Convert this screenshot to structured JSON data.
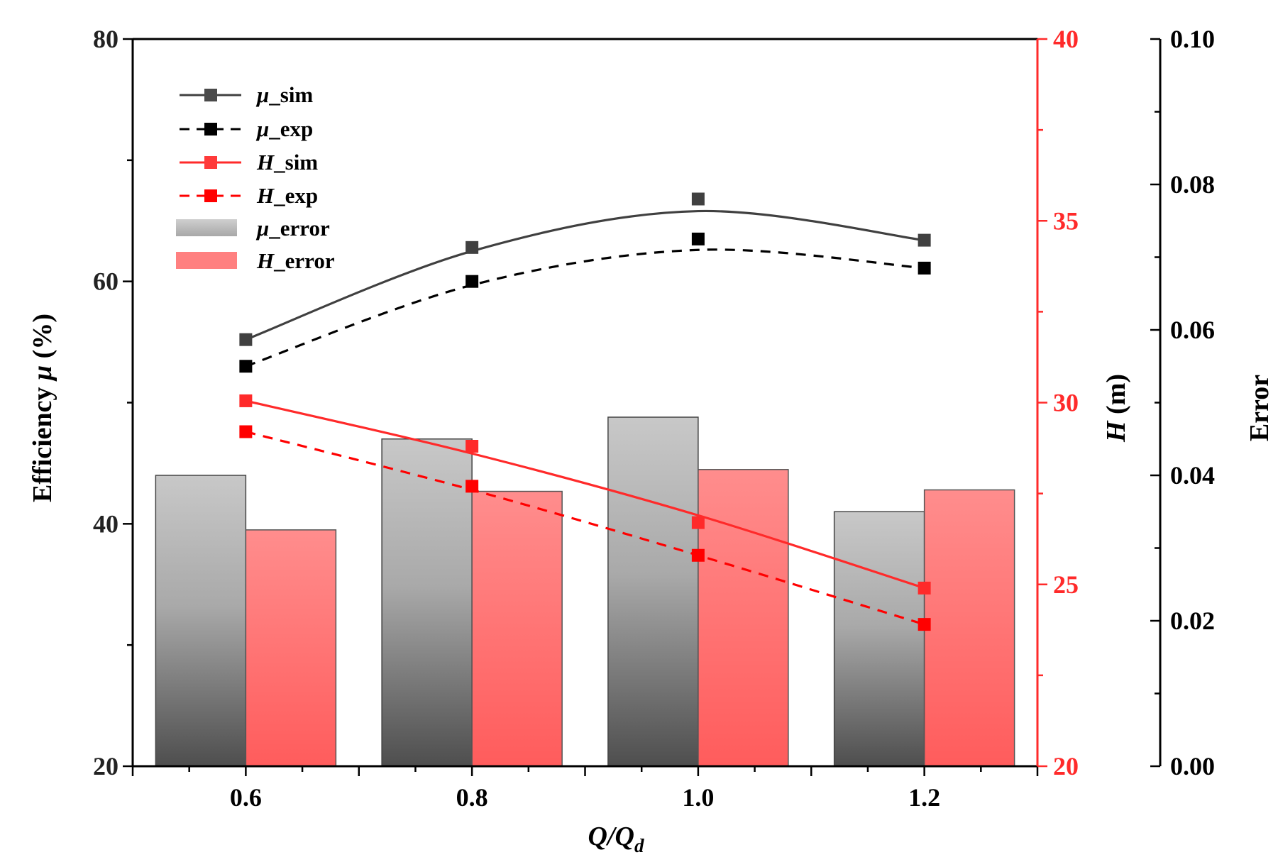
{
  "chart_data": {
    "type": "bar+line",
    "categories": [
      "0.6",
      "0.8",
      "1.0",
      "1.2"
    ],
    "x": [
      0.6,
      0.8,
      1.0,
      1.2
    ],
    "bars": [
      {
        "name": "μ_error",
        "axis": "error",
        "color": "#9a9a9a",
        "values": [
          0.04,
          0.045,
          0.048,
          0.035
        ]
      },
      {
        "name": "H_error",
        "axis": "error",
        "color": "#ff6b6b",
        "values": [
          0.0325,
          0.0378,
          0.0408,
          0.038
        ]
      }
    ],
    "lines": [
      {
        "name": "μ_sim",
        "axis": "efficiency",
        "color": "#404040",
        "dash": false,
        "values": [
          55.2,
          62.8,
          66.8,
          63.4
        ],
        "fit": [
          55.2,
          62.5,
          65.8,
          63.4
        ]
      },
      {
        "name": "μ_exp",
        "axis": "efficiency",
        "color": "#000000",
        "dash": true,
        "values": [
          53.0,
          60.0,
          63.5,
          61.1
        ],
        "fit": [
          53.0,
          59.7,
          62.6,
          61.1
        ]
      },
      {
        "name": "H_sim",
        "axis": "head",
        "color": "#ff2a2a",
        "dash": false,
        "values": [
          30.05,
          28.8,
          26.7,
          24.9
        ],
        "fit": [
          30.05,
          28.6,
          26.9,
          24.9
        ]
      },
      {
        "name": "H_exp",
        "axis": "head",
        "color": "#ff0000",
        "dash": true,
        "values": [
          29.2,
          27.7,
          25.8,
          23.9
        ],
        "fit": [
          29.2,
          27.6,
          25.8,
          23.9
        ]
      }
    ],
    "axes": {
      "x": {
        "label_main": "Q/Q",
        "label_sub": "d",
        "range": [
          0.5,
          1.3
        ],
        "ticks": [
          "0.6",
          "0.8",
          "1.0",
          "1.2"
        ]
      },
      "efficiency": {
        "label_prefix": "Efficiency ",
        "label_symbol": "μ",
        "label_suffix": " (%)",
        "range": [
          20,
          80
        ],
        "ticks": [
          "20",
          "40",
          "60",
          "80"
        ]
      },
      "head": {
        "label_symbol": "H",
        "label_suffix": " (m)",
        "range": [
          20,
          40
        ],
        "ticks": [
          "20",
          "25",
          "30",
          "35",
          "40"
        ],
        "color": "#ff2a2a"
      },
      "error": {
        "label": "Error",
        "range": [
          0,
          0.1
        ],
        "ticks": [
          "0.00",
          "0.02",
          "0.04",
          "0.06",
          "0.08",
          "0.10"
        ]
      }
    },
    "legend": {
      "placement": "top-left",
      "items": [
        {
          "symbol": "μ",
          "suffix": "_sim"
        },
        {
          "symbol": "μ",
          "suffix": "_exp"
        },
        {
          "symbol": "H",
          "suffix": "_sim"
        },
        {
          "symbol": "H",
          "suffix": "_exp"
        },
        {
          "symbol": "μ",
          "suffix": "_error"
        },
        {
          "symbol": "H",
          "suffix": "_error"
        }
      ]
    },
    "grid": false
  }
}
